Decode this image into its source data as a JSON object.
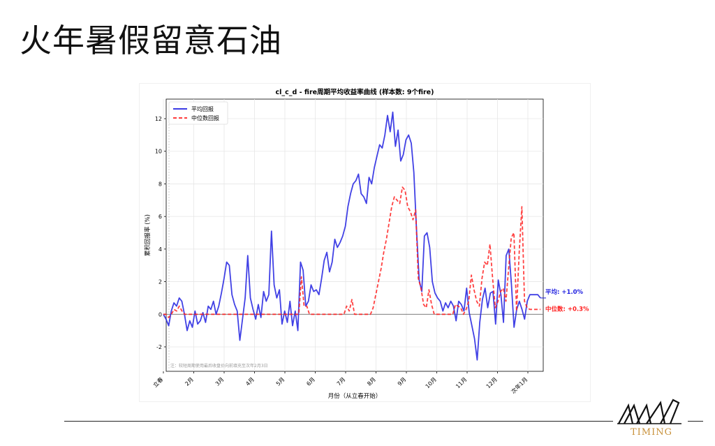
{
  "slide": {
    "title": "火年暑假留意石油"
  },
  "logo": {
    "text": "TIMING",
    "color": "#c8913a"
  },
  "chart_data": {
    "type": "line",
    "title": "cl_c_d - fire周期平均收益率曲线 (样本数: 9个fire)",
    "xlabel": "月份（从立春开始）",
    "ylabel": "累积回报率 (%)",
    "ylim": [
      -3.5,
      13.2
    ],
    "yticks": [
      -2,
      0,
      2,
      4,
      6,
      8,
      10,
      12
    ],
    "x_tick_labels": [
      "立春",
      "2月",
      "3月",
      "4月",
      "5月",
      "6月",
      "7月",
      "8月",
      "9月",
      "10月",
      "11月",
      "12月",
      "次年1月"
    ],
    "grid": true,
    "legend_position": "top-left",
    "zero_line": true,
    "note": "注：较短周期使用最后收盘价向前填充至次年2月3日",
    "series": [
      {
        "name": "平均回报",
        "color": "#2020e0",
        "dash": "solid",
        "end_label": "平均: +1.0%",
        "values": [
          0,
          -0.3,
          -0.7,
          0.2,
          0.7,
          0.5,
          1.0,
          0.8,
          0,
          -1.0,
          -0.4,
          -0.8,
          0.2,
          -0.6,
          -0.4,
          0.1,
          -0.5,
          0.5,
          0.3,
          0.8,
          0,
          0.5,
          1.3,
          2.2,
          3.2,
          3.0,
          1.2,
          0.6,
          0.2,
          -1.6,
          -0.3,
          1.0,
          3.6,
          1.0,
          0.3,
          -0.3,
          0.6,
          -0.2,
          1.4,
          0.8,
          1.2,
          5.1,
          1.8,
          1.0,
          1.5,
          -0.6,
          0.2,
          -0.5,
          0.8,
          -0.7,
          0.2,
          -1.0,
          3.2,
          2.7,
          0.5,
          0.8,
          1.8,
          1.4,
          1.5,
          1.2,
          2.2,
          3.3,
          3.8,
          2.6,
          3.2,
          4.6,
          4.1,
          4.4,
          4.8,
          5.4,
          6.6,
          7.4,
          8.0,
          8.2,
          8.6,
          7.4,
          7.2,
          6.8,
          8.4,
          8.0,
          9.0,
          9.7,
          10.4,
          10.2,
          11.0,
          12.2,
          11.2,
          12.4,
          10.3,
          11.3,
          9.4,
          9.8,
          10.7,
          11.0,
          10.5,
          8.7,
          5.2,
          2.1,
          1.4,
          4.8,
          5.0,
          4.1,
          2.0,
          1.3,
          1.0,
          0.8,
          0.2,
          0.7,
          0.4,
          0.8,
          0.5,
          -0.4,
          0.8,
          0.6,
          0.2,
          1.6,
          0.1,
          -0.7,
          -1.5,
          -2.8,
          -0.5,
          0.9,
          1.6,
          0.4,
          1.3,
          1.4,
          -0.6,
          2.1,
          1.2,
          -0.5,
          3.6,
          4.0,
          1.8,
          -0.8,
          0.3,
          0.8,
          0.3,
          -0.3,
          0.8,
          1.2,
          1.2,
          1.2,
          1.2,
          1.0
        ]
      },
      {
        "name": "中位数回报",
        "color": "#ff2020",
        "dash": "dashed",
        "end_label": "中位数: +0.3%",
        "values": [
          0,
          0,
          -0.2,
          0,
          0.3,
          0.2,
          0.5,
          0.2,
          0,
          0,
          0,
          0,
          0,
          0,
          0,
          0,
          0,
          0,
          0,
          0,
          0,
          0,
          0,
          0,
          0,
          0,
          0,
          0,
          0,
          0,
          0,
          0,
          0,
          0,
          0,
          0,
          0,
          0,
          0,
          0,
          0,
          0,
          0,
          0,
          0,
          0,
          0,
          0,
          0,
          0,
          0,
          0,
          2.3,
          0.5,
          0.5,
          0,
          0,
          0,
          0,
          0,
          0,
          0,
          0,
          0,
          0,
          0,
          0,
          0,
          0,
          0.5,
          0.2,
          0.9,
          0,
          0,
          0,
          0,
          0,
          0,
          0,
          0.4,
          1.2,
          2.0,
          2.8,
          3.8,
          4.6,
          5.6,
          6.6,
          7.2,
          7.0,
          6.8,
          7.8,
          7.6,
          6.6,
          6.3,
          5.8,
          6.4,
          2.2,
          1.6,
          0.6,
          0.4,
          1.5,
          0.6,
          0,
          0,
          0,
          0,
          0,
          0,
          0,
          0,
          0.6,
          0.5,
          0.4,
          0,
          0.3,
          0.8,
          2.4,
          1.5,
          0.8,
          0.5,
          2.2,
          3.2,
          3.0,
          4.3,
          2.2,
          0.4,
          0.8,
          1.4,
          1.6,
          0.8,
          2.8,
          4.7,
          5.0,
          0.2,
          3.8,
          6.6,
          0.8,
          0.4,
          0.3,
          0.3,
          0.3,
          0.3,
          0.3
        ]
      }
    ]
  }
}
